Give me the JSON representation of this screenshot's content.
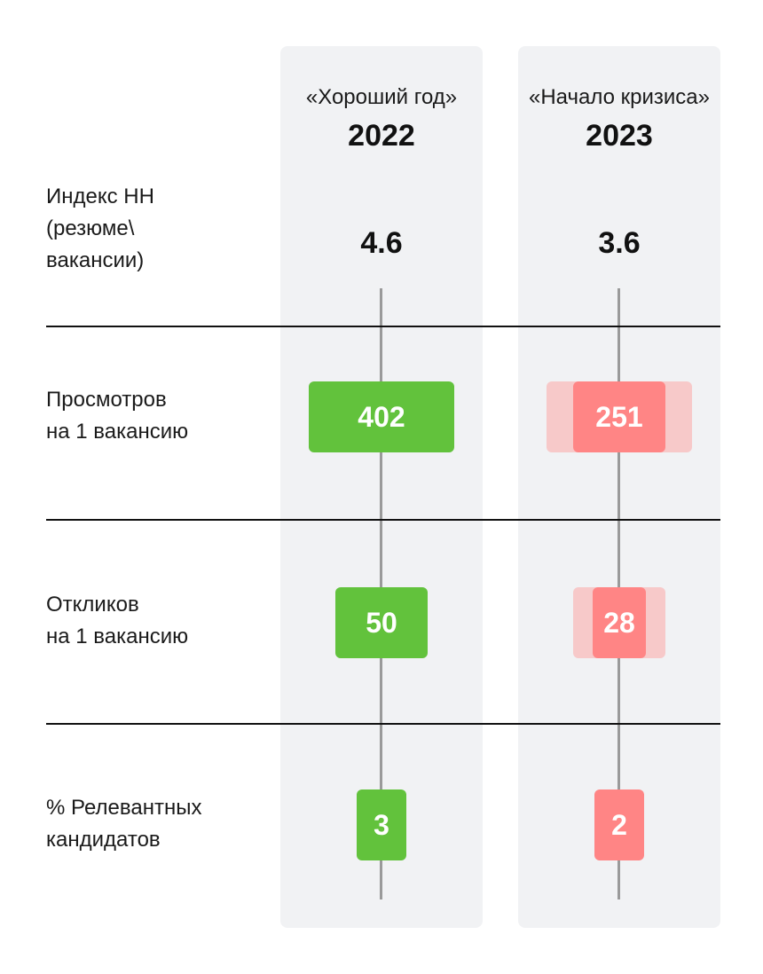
{
  "columns": [
    {
      "caption": "«Хороший год»",
      "year": "2022"
    },
    {
      "caption": "«Начало кризиса»",
      "year": "2023"
    }
  ],
  "rows": [
    {
      "label": "Индекс НН\n(резюме\\\nвакансии)"
    },
    {
      "label": "Просмотров\nна 1 вакансию"
    },
    {
      "label": "Откликов\nна 1 вакансию"
    },
    {
      "label": "% Релевантных\nкандидатов"
    }
  ],
  "colors": {
    "good": "#62c23c",
    "crisis": "#ff8585",
    "crisis_ghost": "#f7c9c9",
    "column_bg": "#f1f2f4"
  },
  "chart_data": {
    "type": "table",
    "categories": [
      "Индекс НН (резюме\\ вакансии)",
      "Просмотров на 1 вакансию",
      "Откликов на 1 вакансию",
      "% Релевантных кандидатов"
    ],
    "series": [
      {
        "name": "«Хороший год» 2022",
        "values": [
          "4.6",
          "402",
          "50",
          "3"
        ]
      },
      {
        "name": "«Начало кризиса» 2023",
        "values": [
          "3.6",
          "251",
          "28",
          "2"
        ]
      }
    ]
  }
}
